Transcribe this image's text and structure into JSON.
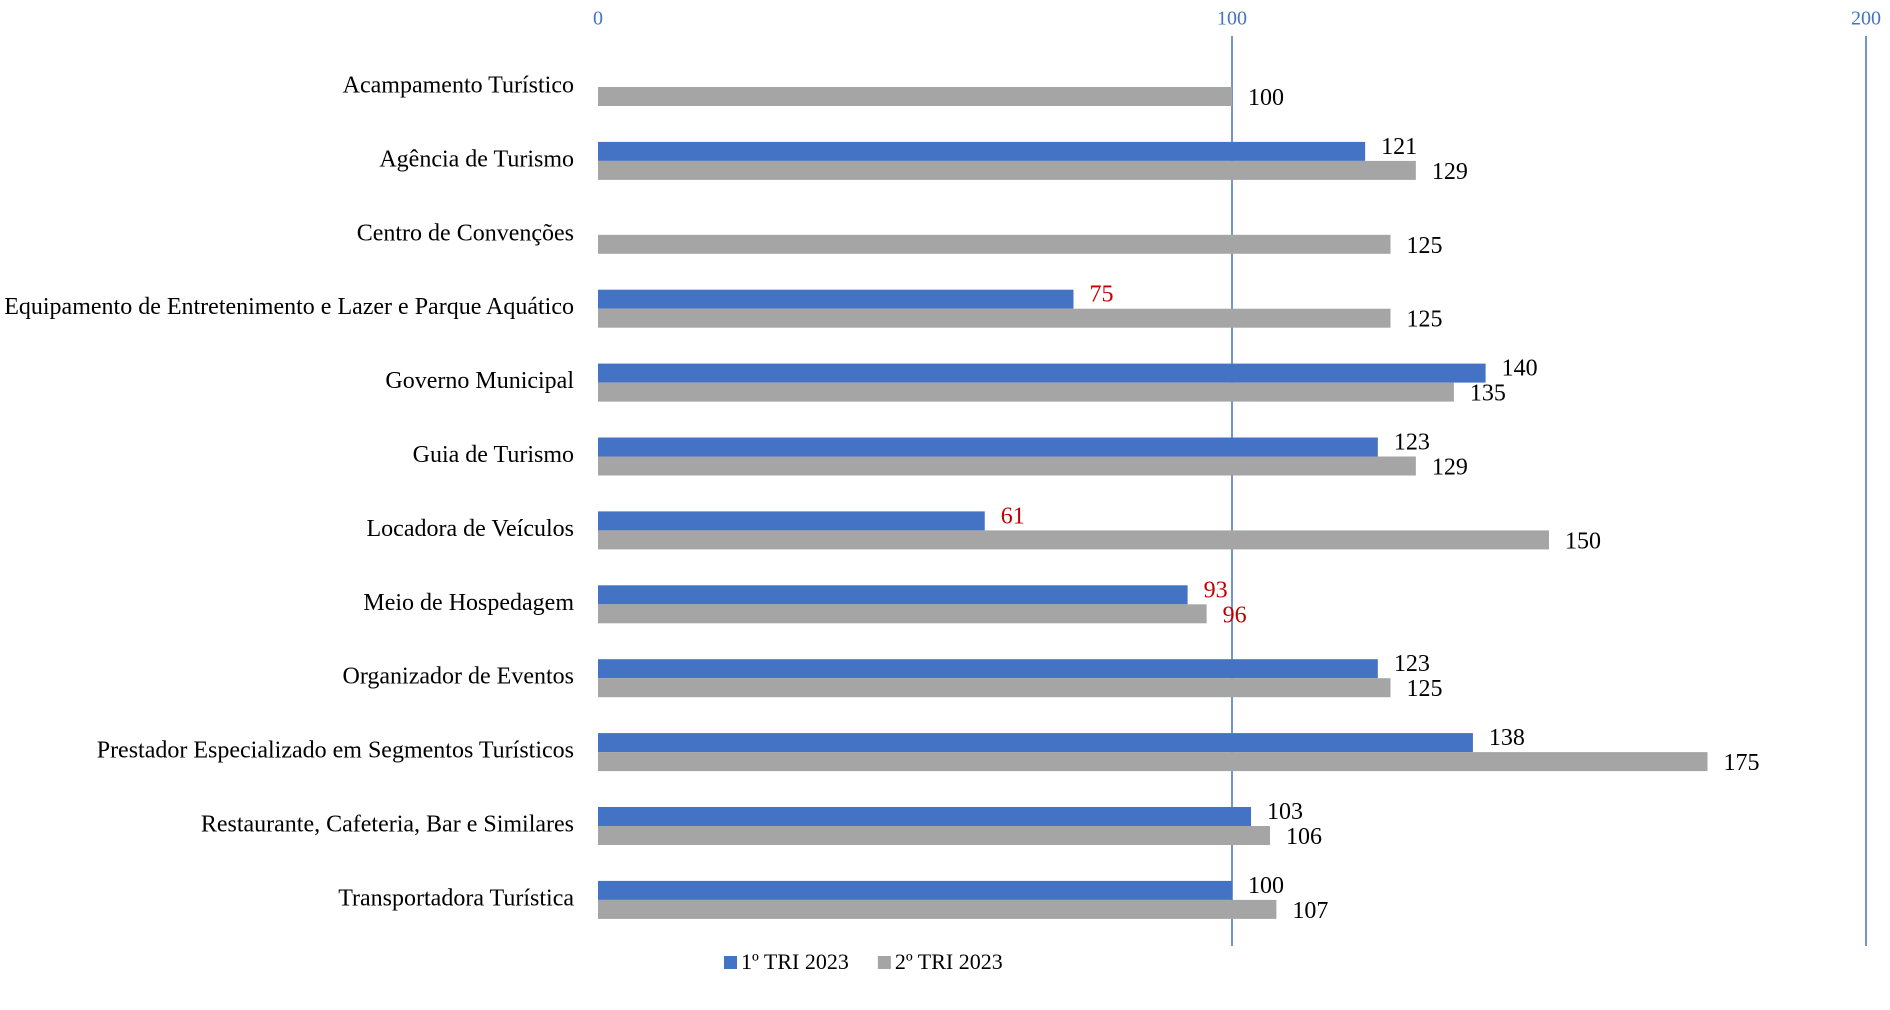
{
  "chart_data": {
    "type": "bar",
    "orientation": "horizontal",
    "categories": [
      "Acampamento Turístico",
      "Agência de Turismo",
      "Centro de Convenções",
      "Equipamento de Entretenimento e Lazer e Parque Aquático",
      "Governo Municipal",
      "Guia de Turismo",
      "Locadora de Veículos",
      "Meio de Hospedagem",
      "Organizador de Eventos",
      "Prestador Especializado em Segmentos Turísticos",
      "Restaurante, Cafeteria, Bar e Similares",
      "Transportadora Turística"
    ],
    "series": [
      {
        "name": "1º TRI 2023",
        "color": "#4472c4",
        "values": [
          null,
          121,
          null,
          75,
          140,
          123,
          61,
          93,
          123,
          138,
          103,
          100
        ]
      },
      {
        "name": "2º TRI 2023",
        "color": "#a5a5a5",
        "values": [
          100,
          129,
          125,
          125,
          135,
          129,
          150,
          96,
          125,
          175,
          106,
          107
        ]
      }
    ],
    "xlim": [
      0,
      200
    ],
    "xticks": [
      0,
      100,
      200
    ],
    "grid": true,
    "highlight_below": 100,
    "highlight_color": "#c00000",
    "legend": "bottom"
  }
}
